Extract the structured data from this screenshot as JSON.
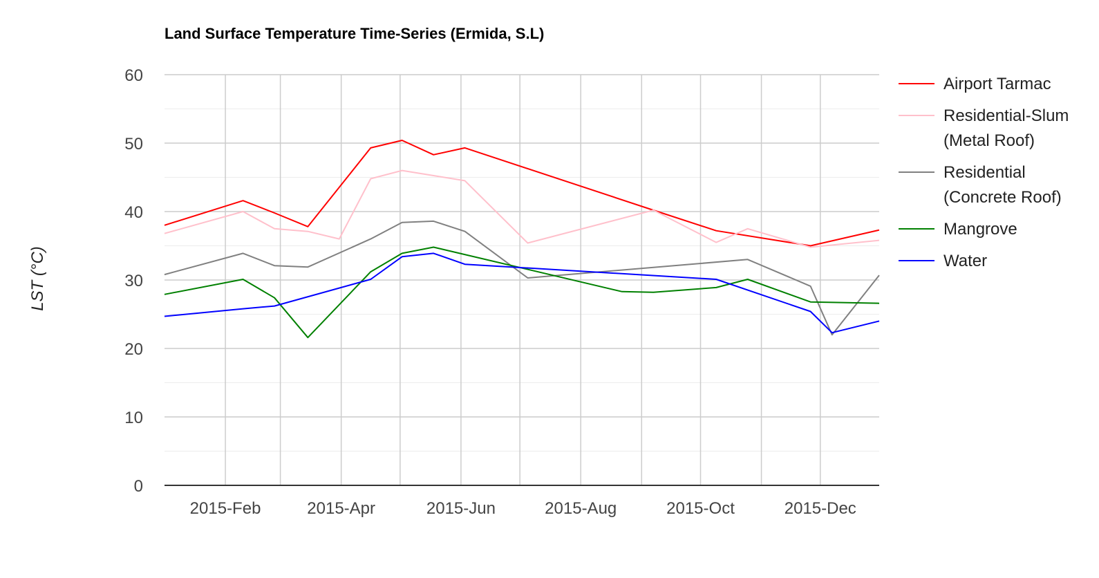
{
  "chart_data": {
    "type": "line",
    "title": "Land Surface Temperature Time-Series (Ermida, S.L)",
    "xlabel": "",
    "ylabel": "LST (°C)",
    "xlim": [
      "2015-01-01",
      "2015-12-31"
    ],
    "ylim": [
      0,
      60
    ],
    "yticks": [
      0,
      10,
      20,
      30,
      40,
      50,
      60
    ],
    "xticks": [
      {
        "date": "2015-02-01",
        "label": "2015-Feb"
      },
      {
        "date": "2015-04-01",
        "label": "2015-Apr"
      },
      {
        "date": "2015-06-01",
        "label": "2015-Jun"
      },
      {
        "date": "2015-08-01",
        "label": "2015-Aug"
      },
      {
        "date": "2015-10-01",
        "label": "2015-Oct"
      },
      {
        "date": "2015-12-01",
        "label": "2015-Dec"
      }
    ],
    "grid": true,
    "legend_position": "right",
    "series": [
      {
        "name": "Airport Tarmac",
        "color": "#ff0000",
        "points": [
          [
            "2015-01-01",
            38.0
          ],
          [
            "2015-02-10",
            41.6
          ],
          [
            "2015-02-26",
            39.8
          ],
          [
            "2015-03-15",
            37.8
          ],
          [
            "2015-04-16",
            49.3
          ],
          [
            "2015-05-02",
            50.4
          ],
          [
            "2015-05-18",
            48.3
          ],
          [
            "2015-06-03",
            49.3
          ],
          [
            "2015-09-07",
            40.2
          ],
          [
            "2015-10-09",
            37.2
          ],
          [
            "2015-11-26",
            35.0
          ],
          [
            "2015-12-31",
            37.3
          ]
        ]
      },
      {
        "name": "Residential-Slum (Metal Roof)",
        "color": "#ffc0cb",
        "points": [
          [
            "2015-01-01",
            36.8
          ],
          [
            "2015-02-10",
            40.0
          ],
          [
            "2015-02-26",
            37.5
          ],
          [
            "2015-03-15",
            37.1
          ],
          [
            "2015-03-31",
            36.0
          ],
          [
            "2015-04-16",
            44.8
          ],
          [
            "2015-05-02",
            46.0
          ],
          [
            "2015-06-03",
            44.5
          ],
          [
            "2015-07-05",
            35.4
          ],
          [
            "2015-09-07",
            40.2
          ],
          [
            "2015-10-09",
            35.5
          ],
          [
            "2015-10-25",
            37.5
          ],
          [
            "2015-11-26",
            34.8
          ],
          [
            "2015-12-31",
            35.8
          ]
        ]
      },
      {
        "name": "Residential (Concrete Roof)",
        "color": "#808080",
        "points": [
          [
            "2015-01-01",
            30.8
          ],
          [
            "2015-02-10",
            33.9
          ],
          [
            "2015-02-26",
            32.1
          ],
          [
            "2015-03-15",
            31.9
          ],
          [
            "2015-04-16",
            36.0
          ],
          [
            "2015-05-02",
            38.4
          ],
          [
            "2015-05-18",
            38.6
          ],
          [
            "2015-06-03",
            37.1
          ],
          [
            "2015-07-05",
            30.3
          ],
          [
            "2015-10-25",
            33.0
          ],
          [
            "2015-11-26",
            29.1
          ],
          [
            "2015-12-07",
            22.0
          ],
          [
            "2015-12-31",
            30.7
          ]
        ]
      },
      {
        "name": "Mangrove",
        "color": "#008000",
        "points": [
          [
            "2015-01-01",
            27.9
          ],
          [
            "2015-02-10",
            30.1
          ],
          [
            "2015-02-26",
            27.4
          ],
          [
            "2015-03-15",
            21.6
          ],
          [
            "2015-04-16",
            31.2
          ],
          [
            "2015-05-02",
            33.9
          ],
          [
            "2015-05-18",
            34.8
          ],
          [
            "2015-08-22",
            28.3
          ],
          [
            "2015-09-07",
            28.2
          ],
          [
            "2015-10-09",
            28.9
          ],
          [
            "2015-10-25",
            30.1
          ],
          [
            "2015-11-26",
            26.8
          ],
          [
            "2015-12-31",
            26.6
          ]
        ]
      },
      {
        "name": "Water",
        "color": "#0000ff",
        "points": [
          [
            "2015-01-01",
            24.7
          ],
          [
            "2015-02-10",
            25.8
          ],
          [
            "2015-02-26",
            26.2
          ],
          [
            "2015-04-16",
            30.1
          ],
          [
            "2015-05-02",
            33.4
          ],
          [
            "2015-05-18",
            33.9
          ],
          [
            "2015-06-03",
            32.3
          ],
          [
            "2015-10-09",
            30.1
          ],
          [
            "2015-11-26",
            25.4
          ],
          [
            "2015-12-07",
            22.3
          ],
          [
            "2015-12-31",
            24.0
          ]
        ]
      }
    ]
  }
}
